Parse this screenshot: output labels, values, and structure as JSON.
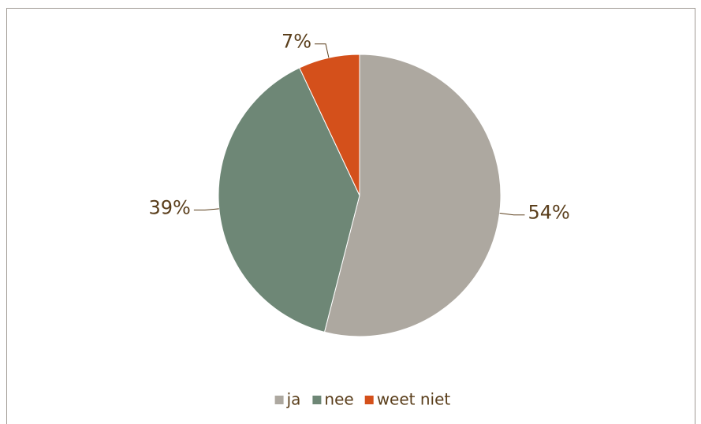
{
  "chart_data": {
    "type": "pie",
    "categories": [
      "ja",
      "nee",
      "weet niet"
    ],
    "values": [
      54,
      39,
      7
    ],
    "value_labels": [
      "54%",
      "39%",
      "7%"
    ],
    "colors": [
      "#ada8a0",
      "#6e8776",
      "#d4501b"
    ],
    "legend": "bottom"
  }
}
